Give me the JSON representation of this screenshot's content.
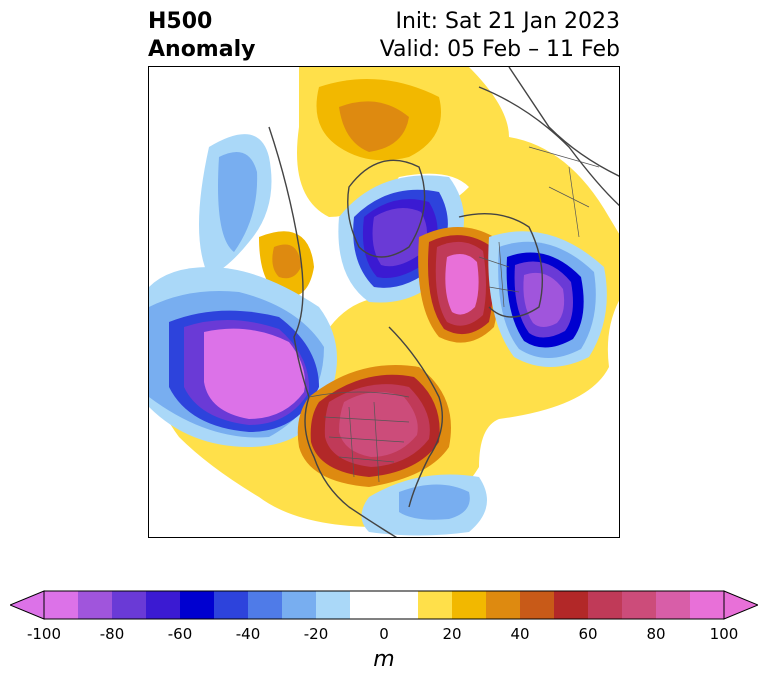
{
  "title": {
    "left_line1": "H500",
    "left_line2": "Anomaly",
    "right_line1": "Init: Sat 21 Jan 2023",
    "right_line2": "Valid: 05 Feb – 11 Feb"
  },
  "colorbar": {
    "unit": "m",
    "min": -100,
    "max": 100,
    "step": 10,
    "tick_labels": [
      "-100",
      "-80",
      "-60",
      "-40",
      "-20",
      "0",
      "20",
      "40",
      "60",
      "80",
      "100"
    ],
    "colors_negative": [
      "#dc72e8",
      "#a055dc",
      "#6a3ad6",
      "#3b1ad2",
      "#0000d0",
      "#2d43dc",
      "#4f7be8",
      "#78aef0",
      "#aad8f8"
    ],
    "color_neutral": "#ffffff",
    "colors_positive": [
      "#ffe04a",
      "#f2b800",
      "#de8a10",
      "#c85a18",
      "#b22828",
      "#c03a58",
      "#cc4c7a",
      "#d85ea8",
      "#e870d8"
    ],
    "extend": "both"
  },
  "map": {
    "projection": "polar-stereographic",
    "region": "Northern Hemisphere",
    "anomaly_centers": [
      {
        "name": "gulf-of-alaska-low",
        "sign": "negative",
        "magnitude": 100
      },
      {
        "name": "north-america-high",
        "sign": "positive",
        "magnitude": 80
      },
      {
        "name": "arctic-low",
        "sign": "negative",
        "magnitude": 70
      },
      {
        "name": "europe-ridge",
        "sign": "positive",
        "magnitude": 90
      },
      {
        "name": "siberia-low",
        "sign": "negative",
        "magnitude": 80
      }
    ]
  }
}
